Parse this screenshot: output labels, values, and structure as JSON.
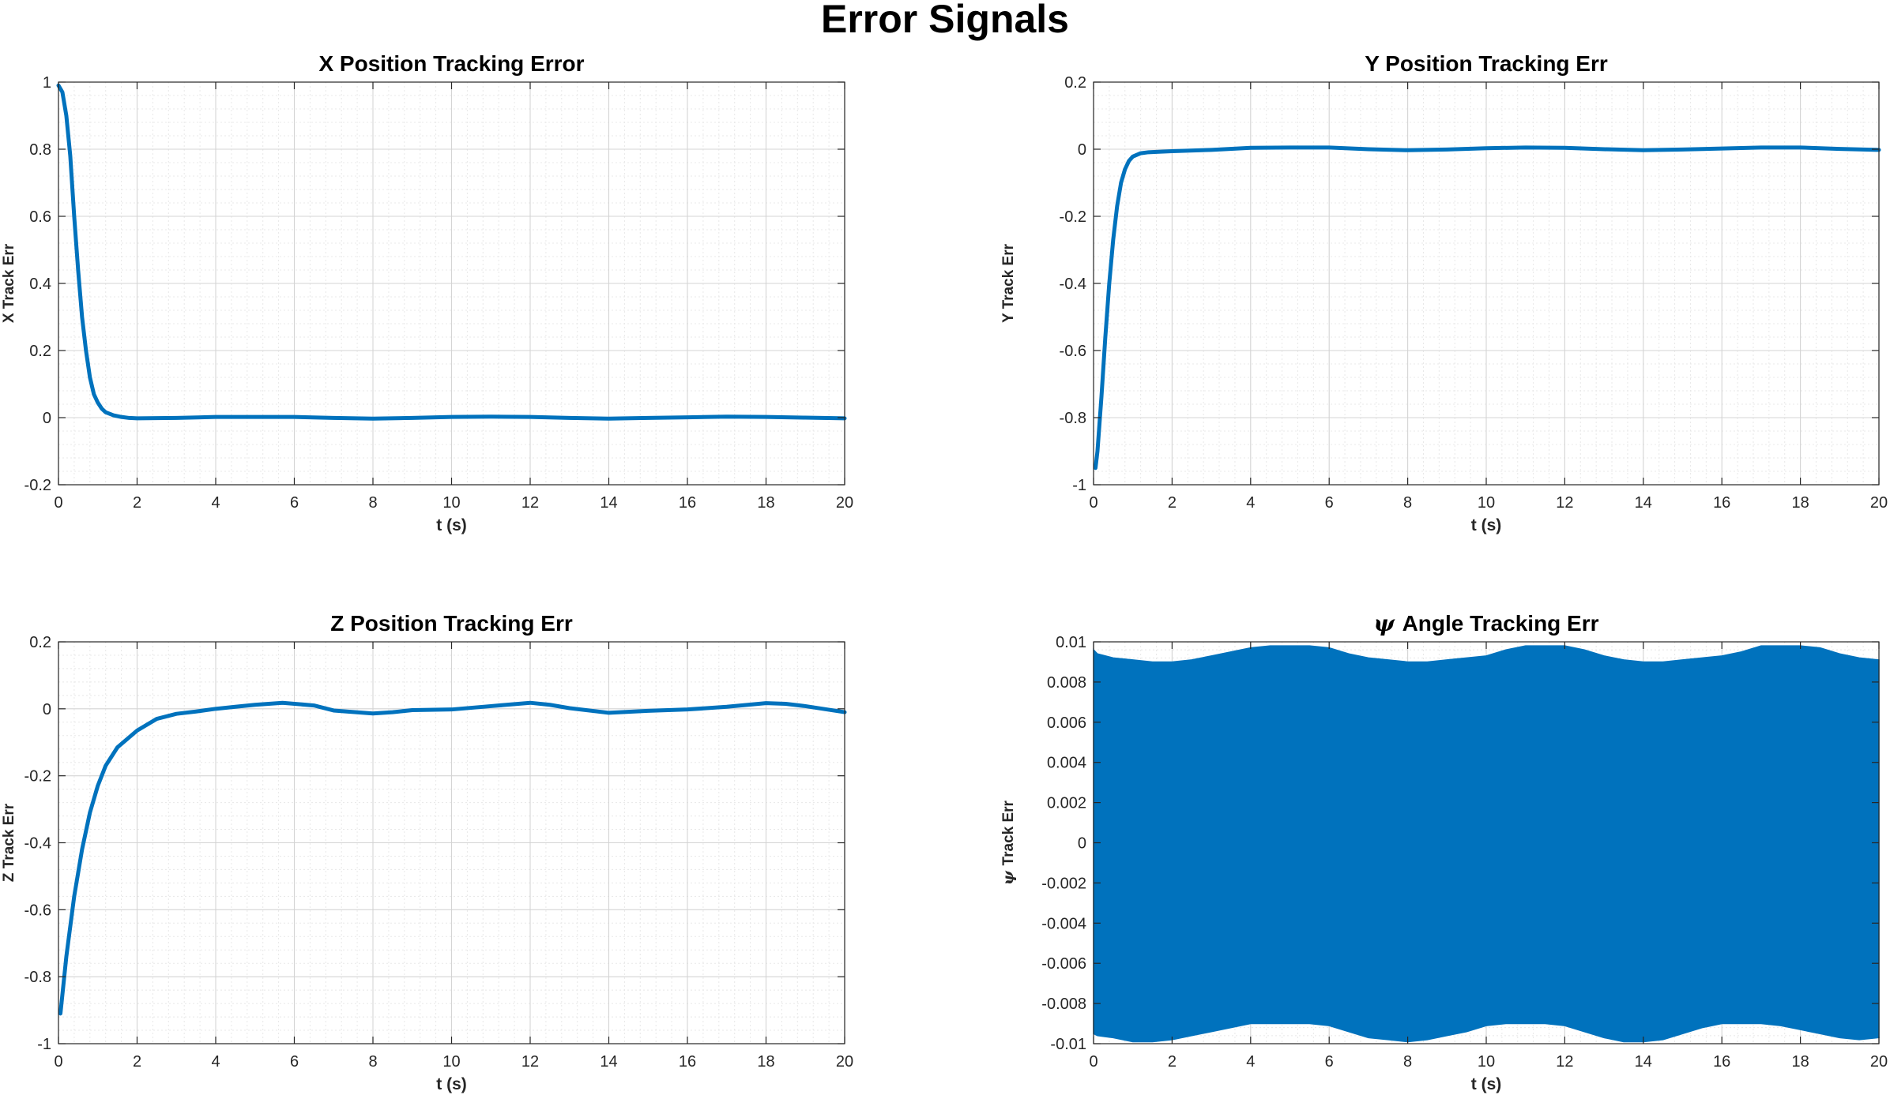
{
  "figure": {
    "title": "Error Signals",
    "line_color": "#0072BD"
  },
  "chart_data": [
    {
      "type": "line",
      "title": "X Position Tracking Error",
      "xlabel": "t (s)",
      "ylabel": "X Track Err",
      "xlim": [
        0,
        20
      ],
      "ylim": [
        -0.2,
        1
      ],
      "xticks": [
        0,
        2,
        4,
        6,
        8,
        10,
        12,
        14,
        16,
        18,
        20
      ],
      "yticks": [
        -0.2,
        0,
        0.2,
        0.4,
        0.6,
        0.8,
        1
      ],
      "ytick_labels": [
        "-0.2",
        "0",
        "0.2",
        "0.4",
        "0.6",
        "0.8",
        "1"
      ],
      "grid": true,
      "minor_grid": true,
      "series": [
        {
          "color": "#0072BD",
          "x": [
            0,
            0.1,
            0.2,
            0.3,
            0.4,
            0.5,
            0.6,
            0.7,
            0.8,
            0.9,
            1.0,
            1.1,
            1.2,
            1.4,
            1.6,
            1.8,
            2.0,
            3,
            4,
            5,
            6,
            7,
            8,
            9,
            10,
            11,
            12,
            13,
            14,
            15,
            16,
            17,
            18,
            19,
            20
          ],
          "y": [
            0.99,
            0.97,
            0.9,
            0.78,
            0.6,
            0.44,
            0.3,
            0.2,
            0.12,
            0.07,
            0.045,
            0.027,
            0.016,
            0.007,
            0.002,
            -0.001,
            -0.002,
            -0.001,
            0.002,
            0.002,
            0.002,
            -0.001,
            -0.003,
            -0.001,
            0.002,
            0.003,
            0.002,
            -0.001,
            -0.003,
            -0.001,
            0.001,
            0.003,
            0.002,
            0.0,
            -0.002
          ]
        }
      ]
    },
    {
      "type": "line",
      "title": "Y Position Tracking Err",
      "xlabel": "t (s)",
      "ylabel": "Y Track Err",
      "xlim": [
        0,
        20
      ],
      "ylim": [
        -1,
        0.2
      ],
      "xticks": [
        0,
        2,
        4,
        6,
        8,
        10,
        12,
        14,
        16,
        18,
        20
      ],
      "yticks": [
        -1,
        -0.8,
        -0.6,
        -0.4,
        -0.2,
        0,
        0.2
      ],
      "ytick_labels": [
        "-1",
        "-0.8",
        "-0.6",
        "-0.4",
        "-0.2",
        "0",
        "0.2"
      ],
      "grid": true,
      "minor_grid": true,
      "series": [
        {
          "color": "#0072BD",
          "x": [
            0.05,
            0.1,
            0.2,
            0.3,
            0.4,
            0.5,
            0.6,
            0.7,
            0.8,
            0.9,
            1.0,
            1.2,
            1.4,
            1.6,
            2,
            3,
            4,
            5,
            6,
            7,
            8,
            9,
            10,
            11,
            12,
            13,
            14,
            15,
            16,
            17,
            18,
            19,
            20
          ],
          "y": [
            -0.95,
            -0.9,
            -0.74,
            -0.56,
            -0.4,
            -0.27,
            -0.17,
            -0.1,
            -0.06,
            -0.035,
            -0.022,
            -0.012,
            -0.009,
            -0.008,
            -0.006,
            -0.002,
            0.004,
            0.005,
            0.005,
            0.0,
            -0.003,
            -0.001,
            0.003,
            0.005,
            0.004,
            0.0,
            -0.003,
            -0.001,
            0.002,
            0.005,
            0.005,
            0.001,
            -0.002
          ]
        }
      ]
    },
    {
      "type": "line",
      "title": "Z Position Tracking Err",
      "xlabel": "t (s)",
      "ylabel": "Z Track Err",
      "xlim": [
        0,
        20
      ],
      "ylim": [
        -1,
        0.2
      ],
      "xticks": [
        0,
        2,
        4,
        6,
        8,
        10,
        12,
        14,
        16,
        18,
        20
      ],
      "yticks": [
        -1,
        -0.8,
        -0.6,
        -0.4,
        -0.2,
        0,
        0.2
      ],
      "ytick_labels": [
        "-1",
        "-0.8",
        "-0.6",
        "-0.4",
        "-0.2",
        "0",
        "0.2"
      ],
      "grid": true,
      "minor_grid": true,
      "series": [
        {
          "color": "#0072BD",
          "x": [
            0.05,
            0.2,
            0.4,
            0.6,
            0.8,
            1.0,
            1.2,
            1.5,
            2.0,
            2.5,
            3.0,
            3.5,
            4,
            4.5,
            5,
            5.7,
            6.5,
            7,
            8,
            8.5,
            9,
            10,
            11,
            12,
            12.5,
            13,
            14,
            15,
            16,
            17,
            18,
            18.5,
            19,
            20
          ],
          "y": [
            -0.91,
            -0.74,
            -0.56,
            -0.42,
            -0.31,
            -0.23,
            -0.17,
            -0.115,
            -0.065,
            -0.03,
            -0.015,
            -0.008,
            0.0,
            0.006,
            0.012,
            0.018,
            0.01,
            -0.005,
            -0.014,
            -0.01,
            -0.004,
            -0.002,
            0.008,
            0.018,
            0.012,
            0.002,
            -0.012,
            -0.006,
            -0.002,
            0.006,
            0.017,
            0.015,
            0.008,
            -0.01
          ]
        }
      ]
    },
    {
      "type": "area",
      "title_symbol": "ψ",
      "title": "Angle Tracking Err",
      "xlabel": "t (s)",
      "ylabel_symbol": "ψ",
      "ylabel": "Track Err",
      "xlim": [
        0,
        20
      ],
      "ylim": [
        -0.01,
        0.01
      ],
      "xticks": [
        0,
        2,
        4,
        6,
        8,
        10,
        12,
        14,
        16,
        18,
        20
      ],
      "yticks": [
        -0.01,
        -0.008,
        -0.006,
        -0.004,
        -0.002,
        0,
        0.002,
        0.004,
        0.006,
        0.008,
        0.01
      ],
      "ytick_labels": [
        "-0.01",
        "-0.008",
        "-0.006",
        "-0.004",
        "-0.002",
        "0",
        "0.002",
        "0.004",
        "0.006",
        "0.008",
        "0.01"
      ],
      "grid": true,
      "minor_grid": true,
      "description": "rapidly oscillating signal filling the band between an upper and lower envelope",
      "series": [
        {
          "color": "#0072BD",
          "x": [
            0,
            0.1,
            0.5,
            1.0,
            1.5,
            2.0,
            2.5,
            3.0,
            3.5,
            4.0,
            4.5,
            5.0,
            5.5,
            6.0,
            6.5,
            7.0,
            7.5,
            8.0,
            8.5,
            9.0,
            9.5,
            10.0,
            10.5,
            11.0,
            11.5,
            12.0,
            12.5,
            13.0,
            13.5,
            14.0,
            14.5,
            15.0,
            15.5,
            16.0,
            16.5,
            17.0,
            17.5,
            18.0,
            18.5,
            19.0,
            19.5,
            20.0
          ],
          "upper": [
            0.0096,
            0.0094,
            0.0092,
            0.0091,
            0.009,
            0.009,
            0.0091,
            0.0093,
            0.0095,
            0.0097,
            0.0098,
            0.0098,
            0.0098,
            0.0097,
            0.0094,
            0.0092,
            0.0091,
            0.009,
            0.009,
            0.0091,
            0.0092,
            0.0093,
            0.0096,
            0.0098,
            0.0098,
            0.0098,
            0.0096,
            0.0093,
            0.0091,
            0.009,
            0.009,
            0.0091,
            0.0092,
            0.0093,
            0.0095,
            0.0098,
            0.0098,
            0.0098,
            0.0097,
            0.0094,
            0.0092,
            0.0091
          ],
          "lower": [
            -0.0095,
            -0.0096,
            -0.0097,
            -0.0099,
            -0.0099,
            -0.0098,
            -0.0096,
            -0.0094,
            -0.0092,
            -0.009,
            -0.009,
            -0.009,
            -0.009,
            -0.0091,
            -0.0094,
            -0.0097,
            -0.0098,
            -0.0099,
            -0.0098,
            -0.0096,
            -0.0094,
            -0.0091,
            -0.009,
            -0.009,
            -0.009,
            -0.0091,
            -0.0094,
            -0.0097,
            -0.0099,
            -0.0099,
            -0.0098,
            -0.0095,
            -0.0092,
            -0.009,
            -0.009,
            -0.009,
            -0.0091,
            -0.0093,
            -0.0095,
            -0.0097,
            -0.0098,
            -0.0097
          ]
        }
      ]
    }
  ]
}
